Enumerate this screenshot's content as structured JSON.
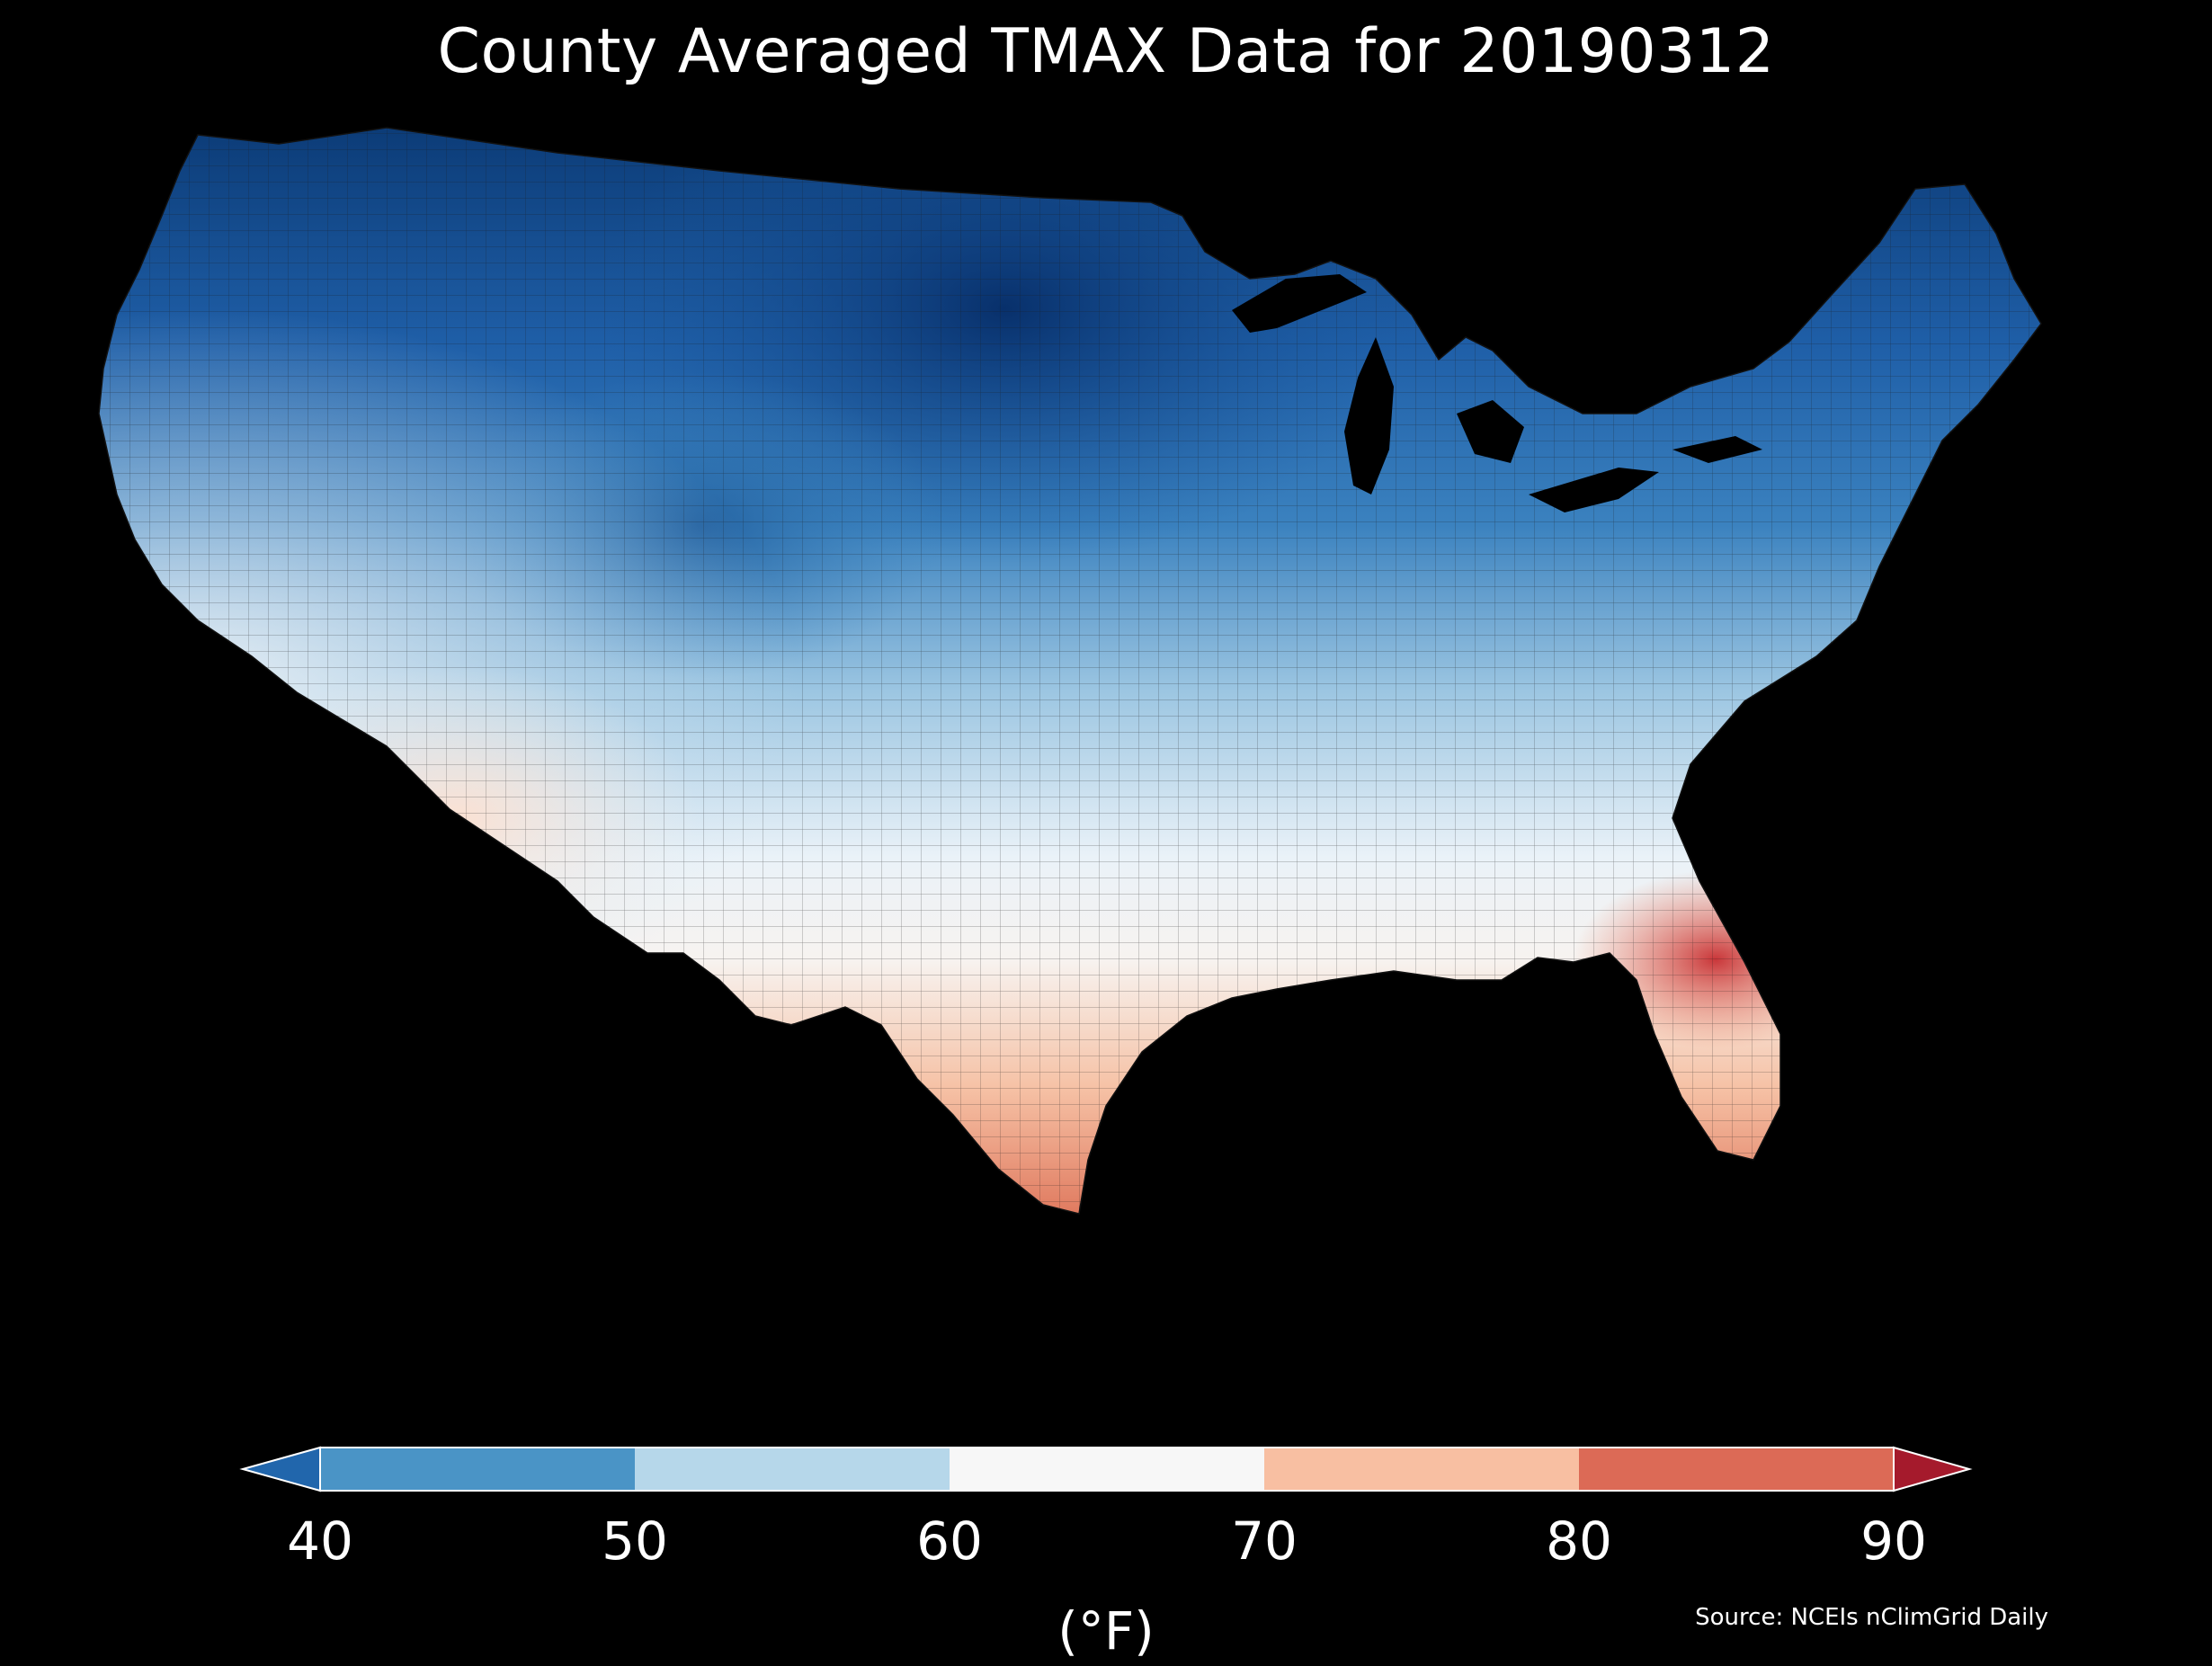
{
  "title": "County Averaged TMAX Data for 20190312",
  "source": "Source: NCEIs nClimGrid Daily",
  "colorbar": {
    "unit_label": "(°F)",
    "ticks": [
      "40",
      "50",
      "60",
      "70",
      "80",
      "90"
    ],
    "bins": [
      {
        "range": "<40",
        "color": "#2166ac"
      },
      {
        "range": "40-50",
        "color": "#4a94c6"
      },
      {
        "range": "50-60",
        "color": "#b6d7ea"
      },
      {
        "range": "60-70",
        "color": "#f7f7f7"
      },
      {
        "range": "70-80",
        "color": "#f8bfa2"
      },
      {
        "range": "80-90",
        "color": "#dc6a56"
      },
      {
        "range": ">90",
        "color": "#a51a2c"
      }
    ],
    "extend": "both"
  },
  "map": {
    "region": "Contiguous United States",
    "variable": "TMAX",
    "date": "20190312",
    "pattern": "Coldest in northern plains and upper Midwest; warmest in southern Texas and Florida"
  }
}
